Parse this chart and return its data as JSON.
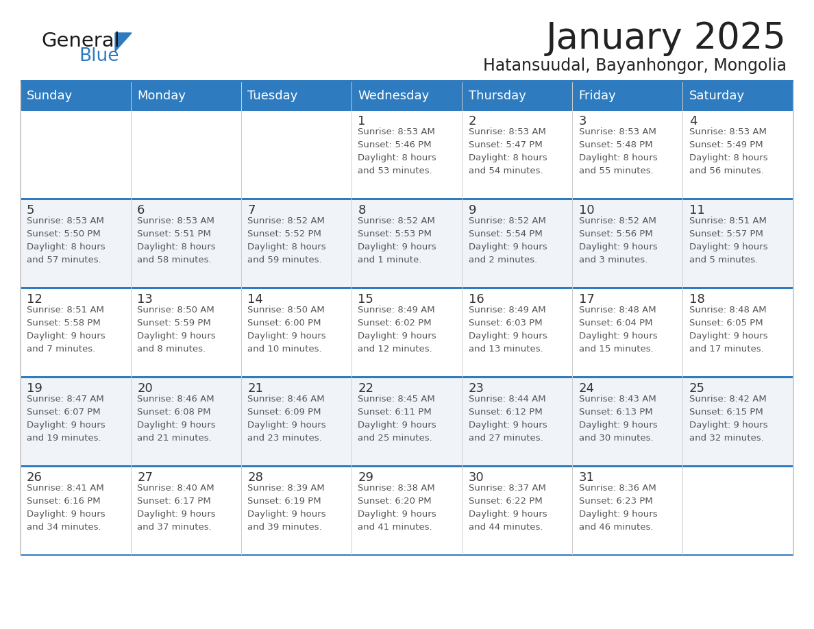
{
  "title": "January 2025",
  "subtitle": "Hatansuudal, Bayanhongor, Mongolia",
  "days_of_week": [
    "Sunday",
    "Monday",
    "Tuesday",
    "Wednesday",
    "Thursday",
    "Friday",
    "Saturday"
  ],
  "header_bg": "#2E7BBF",
  "header_text": "#FFFFFF",
  "row_bg_light": "#FFFFFF",
  "row_bg_dark": "#F0F4F8",
  "cell_text": "#333333",
  "day_num_text": "#333333",
  "accent_line_color": "#2E7BBF",
  "title_color": "#222222",
  "subtitle_color": "#222222",
  "logo_general_color": "#1a1a1a",
  "logo_blue_color": "#2E7BBF",
  "calendar_data": [
    [
      {
        "day": "",
        "info": ""
      },
      {
        "day": "",
        "info": ""
      },
      {
        "day": "",
        "info": ""
      },
      {
        "day": "1",
        "info": "Sunrise: 8:53 AM\nSunset: 5:46 PM\nDaylight: 8 hours\nand 53 minutes."
      },
      {
        "day": "2",
        "info": "Sunrise: 8:53 AM\nSunset: 5:47 PM\nDaylight: 8 hours\nand 54 minutes."
      },
      {
        "day": "3",
        "info": "Sunrise: 8:53 AM\nSunset: 5:48 PM\nDaylight: 8 hours\nand 55 minutes."
      },
      {
        "day": "4",
        "info": "Sunrise: 8:53 AM\nSunset: 5:49 PM\nDaylight: 8 hours\nand 56 minutes."
      }
    ],
    [
      {
        "day": "5",
        "info": "Sunrise: 8:53 AM\nSunset: 5:50 PM\nDaylight: 8 hours\nand 57 minutes."
      },
      {
        "day": "6",
        "info": "Sunrise: 8:53 AM\nSunset: 5:51 PM\nDaylight: 8 hours\nand 58 minutes."
      },
      {
        "day": "7",
        "info": "Sunrise: 8:52 AM\nSunset: 5:52 PM\nDaylight: 8 hours\nand 59 minutes."
      },
      {
        "day": "8",
        "info": "Sunrise: 8:52 AM\nSunset: 5:53 PM\nDaylight: 9 hours\nand 1 minute."
      },
      {
        "day": "9",
        "info": "Sunrise: 8:52 AM\nSunset: 5:54 PM\nDaylight: 9 hours\nand 2 minutes."
      },
      {
        "day": "10",
        "info": "Sunrise: 8:52 AM\nSunset: 5:56 PM\nDaylight: 9 hours\nand 3 minutes."
      },
      {
        "day": "11",
        "info": "Sunrise: 8:51 AM\nSunset: 5:57 PM\nDaylight: 9 hours\nand 5 minutes."
      }
    ],
    [
      {
        "day": "12",
        "info": "Sunrise: 8:51 AM\nSunset: 5:58 PM\nDaylight: 9 hours\nand 7 minutes."
      },
      {
        "day": "13",
        "info": "Sunrise: 8:50 AM\nSunset: 5:59 PM\nDaylight: 9 hours\nand 8 minutes."
      },
      {
        "day": "14",
        "info": "Sunrise: 8:50 AM\nSunset: 6:00 PM\nDaylight: 9 hours\nand 10 minutes."
      },
      {
        "day": "15",
        "info": "Sunrise: 8:49 AM\nSunset: 6:02 PM\nDaylight: 9 hours\nand 12 minutes."
      },
      {
        "day": "16",
        "info": "Sunrise: 8:49 AM\nSunset: 6:03 PM\nDaylight: 9 hours\nand 13 minutes."
      },
      {
        "day": "17",
        "info": "Sunrise: 8:48 AM\nSunset: 6:04 PM\nDaylight: 9 hours\nand 15 minutes."
      },
      {
        "day": "18",
        "info": "Sunrise: 8:48 AM\nSunset: 6:05 PM\nDaylight: 9 hours\nand 17 minutes."
      }
    ],
    [
      {
        "day": "19",
        "info": "Sunrise: 8:47 AM\nSunset: 6:07 PM\nDaylight: 9 hours\nand 19 minutes."
      },
      {
        "day": "20",
        "info": "Sunrise: 8:46 AM\nSunset: 6:08 PM\nDaylight: 9 hours\nand 21 minutes."
      },
      {
        "day": "21",
        "info": "Sunrise: 8:46 AM\nSunset: 6:09 PM\nDaylight: 9 hours\nand 23 minutes."
      },
      {
        "day": "22",
        "info": "Sunrise: 8:45 AM\nSunset: 6:11 PM\nDaylight: 9 hours\nand 25 minutes."
      },
      {
        "day": "23",
        "info": "Sunrise: 8:44 AM\nSunset: 6:12 PM\nDaylight: 9 hours\nand 27 minutes."
      },
      {
        "day": "24",
        "info": "Sunrise: 8:43 AM\nSunset: 6:13 PM\nDaylight: 9 hours\nand 30 minutes."
      },
      {
        "day": "25",
        "info": "Sunrise: 8:42 AM\nSunset: 6:15 PM\nDaylight: 9 hours\nand 32 minutes."
      }
    ],
    [
      {
        "day": "26",
        "info": "Sunrise: 8:41 AM\nSunset: 6:16 PM\nDaylight: 9 hours\nand 34 minutes."
      },
      {
        "day": "27",
        "info": "Sunrise: 8:40 AM\nSunset: 6:17 PM\nDaylight: 9 hours\nand 37 minutes."
      },
      {
        "day": "28",
        "info": "Sunrise: 8:39 AM\nSunset: 6:19 PM\nDaylight: 9 hours\nand 39 minutes."
      },
      {
        "day": "29",
        "info": "Sunrise: 8:38 AM\nSunset: 6:20 PM\nDaylight: 9 hours\nand 41 minutes."
      },
      {
        "day": "30",
        "info": "Sunrise: 8:37 AM\nSunset: 6:22 PM\nDaylight: 9 hours\nand 44 minutes."
      },
      {
        "day": "31",
        "info": "Sunrise: 8:36 AM\nSunset: 6:23 PM\nDaylight: 9 hours\nand 46 minutes."
      },
      {
        "day": "",
        "info": ""
      }
    ]
  ]
}
